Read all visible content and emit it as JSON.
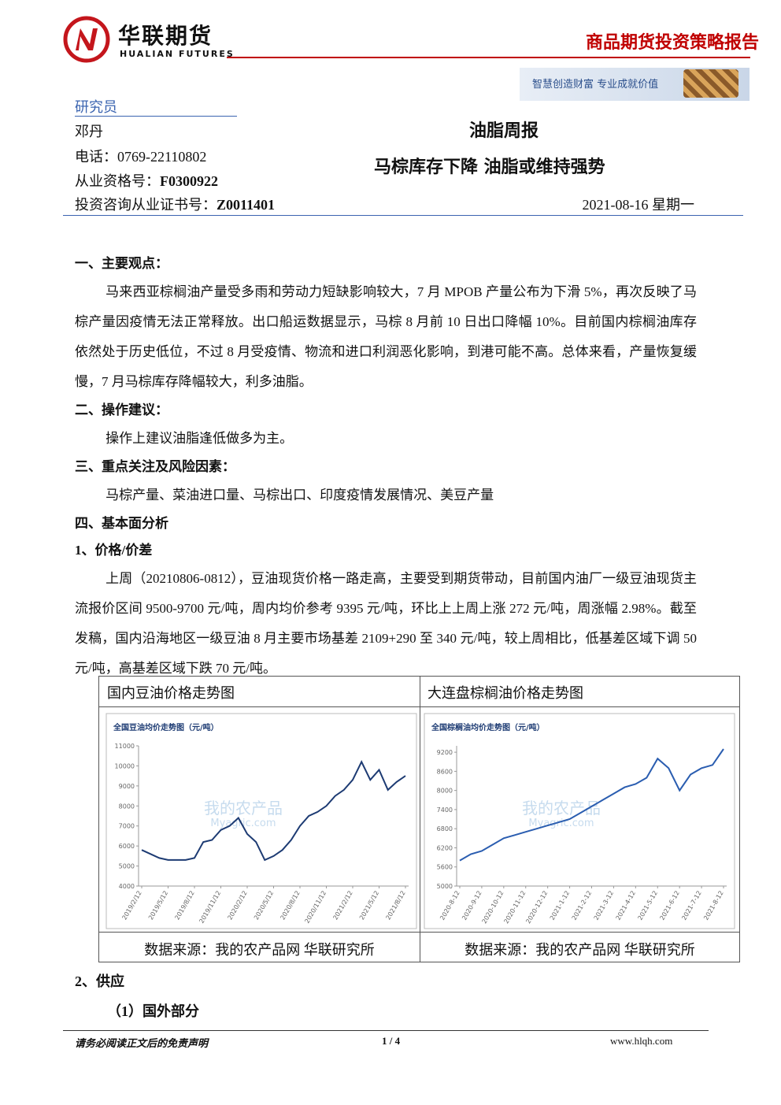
{
  "header": {
    "logo_cn": "华联期货",
    "logo_en": "HUALIAN FUTURES",
    "report_type": "商品期货投资策略报告",
    "slogan": "智慧创造财富 专业成就价值"
  },
  "researcher": {
    "label": "研究员",
    "name": "邓丹",
    "phone": "电话：0769-22110802",
    "qual_label": "从业资格号：",
    "qual": "F0300922",
    "cert_label": "投资咨询从业证书号：",
    "cert": "Z0011401"
  },
  "title": "油脂周报",
  "subtitle": "马棕库存下降 油脂或维持强势",
  "date": "2021-08-16 星期一",
  "sections": [
    {
      "heading": "一、主要观点：",
      "paragraphs": [
        "马来西亚棕榈油产量受多雨和劳动力短缺影响较大，7 月 MPOB 产量公布为下滑 5%，再次反映了马棕产量因疫情无法正常释放。出口船运数据显示，马棕 8 月前 10 日出口降幅 10%。目前国内棕榈油库存依然处于历史低位，不过 8 月受疫情、物流和进口利润恶化影响，到港可能不高。总体来看，产量恢复缓慢，7 月马棕库存降幅较大，利多油脂。"
      ]
    },
    {
      "heading": "二、操作建议：",
      "paragraphs": [
        "操作上建议油脂逢低做多为主。"
      ]
    },
    {
      "heading": "三、重点关注及风险因素：",
      "paragraphs": [
        "马棕产量、菜油进口量、马棕出口、印度疫情发展情况、美豆产量"
      ]
    },
    {
      "heading": "四、基本面分析",
      "paragraphs": []
    },
    {
      "heading": "1、价格/价差",
      "paragraphs": [
        "上周（20210806-0812），豆油现货价格一路走高，主要受到期货带动，目前国内油厂一级豆油现货主流报价区间 9500-9700 元/吨，周内均价参考 9395 元/吨，环比上上周上涨 272 元/吨，周涨幅 2.98%。截至发稿，国内沿海地区一级豆油 8 月主要市场基差 2109+290 至 340 元/吨，较上周相比，低基差区域下调 50 元/吨，高基差区域下跌 70 元/吨。"
      ]
    }
  ],
  "figures": [
    {
      "caption": "国内豆油价格走势图",
      "source": "数据来源：我的农产品网 华联研究所",
      "chart_data": {
        "type": "line",
        "title": "全国豆油均价走势图（元/吨）",
        "watermark": "我的农产品",
        "watermark_en": "Myagric.com",
        "color": "#1d3b73",
        "categories": [
          "2019/2/12",
          null,
          null,
          "2019/5/12",
          null,
          null,
          "2019/8/12",
          null,
          null,
          "2019/11/12",
          null,
          null,
          "2020/2/12",
          null,
          null,
          "2020/5/12",
          null,
          null,
          "2020/8/12",
          null,
          null,
          "2020/11/12",
          null,
          null,
          "2021/2/12",
          null,
          null,
          "2021/5/12",
          null,
          null,
          "2021/8/12"
        ],
        "values": [
          5800,
          5600,
          5400,
          5300,
          5300,
          5300,
          5400,
          6200,
          6300,
          6800,
          7000,
          7400,
          6600,
          6200,
          5300,
          5500,
          5800,
          6300,
          7000,
          7500,
          7700,
          8000,
          8500,
          8800,
          9300,
          10200,
          9300,
          9800,
          8800,
          9200,
          9500
        ],
        "ylim": [
          4000,
          11000
        ],
        "yticks": [
          4000,
          5000,
          6000,
          7000,
          8000,
          9000,
          10000,
          11000
        ]
      }
    },
    {
      "caption": "大连盘棕榈油价格走势图",
      "source": "数据来源：我的农产品网 华联研究所",
      "chart_data": {
        "type": "line",
        "title": "全国棕榈油均价走势图（元/吨）",
        "watermark": "我的农产品",
        "watermark_en": "Myagric.com",
        "color": "#2a5db0",
        "categories": [
          "2020-8-12",
          null,
          "2020-9-12",
          null,
          "2020-10-12",
          null,
          "2020-11-12",
          null,
          "2020-12-12",
          null,
          "2021-1-12",
          null,
          "2021-2-12",
          null,
          "2021-3-12",
          null,
          "2021-4-12",
          null,
          "2021-5-12",
          null,
          "2021-6-12",
          null,
          "2021-7-12",
          null,
          "2021-8-12"
        ],
        "values": [
          5800,
          6000,
          6100,
          6300,
          6500,
          6600,
          6700,
          6800,
          6900,
          7000,
          7100,
          7300,
          7500,
          7700,
          7900,
          8100,
          8200,
          8400,
          9000,
          8700,
          8000,
          8500,
          8700,
          8800,
          9300
        ],
        "ylim": [
          5000,
          9400
        ],
        "yticks": [
          5000,
          5600,
          6200,
          6800,
          7400,
          8000,
          8600,
          9200
        ]
      }
    }
  ],
  "section_supply": {
    "heading": "2、供应",
    "sub": "（1）国外部分"
  },
  "footer": {
    "disclaimer": "请务必阅读正文后的免责声明",
    "page": "1 / 4",
    "site": "www.hlqh.com"
  }
}
